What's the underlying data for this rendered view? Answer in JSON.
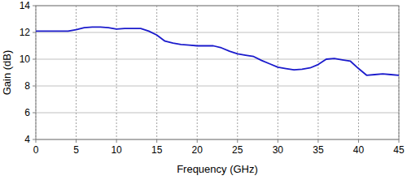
{
  "chart_data": {
    "type": "line",
    "x_label": "Frequency (GHz)",
    "y_label": "Gain (dB)",
    "x": [
      0,
      2,
      4,
      5,
      6,
      7,
      8,
      9,
      10,
      11,
      12,
      13,
      14,
      15,
      16,
      17,
      18,
      19,
      20,
      21,
      22,
      23,
      24,
      25,
      26,
      27,
      28,
      29,
      30,
      31,
      32,
      33,
      34,
      35,
      36,
      37,
      38,
      39,
      40,
      41,
      42,
      43,
      44,
      45
    ],
    "values": [
      12.1,
      12.1,
      12.1,
      12.2,
      12.35,
      12.4,
      12.4,
      12.35,
      12.25,
      12.3,
      12.3,
      12.3,
      12.1,
      11.8,
      11.35,
      11.2,
      11.1,
      11.05,
      11.0,
      11.0,
      11.0,
      10.85,
      10.6,
      10.4,
      10.3,
      10.2,
      9.9,
      9.65,
      9.4,
      9.3,
      9.2,
      9.25,
      9.35,
      9.6,
      10.0,
      10.05,
      9.95,
      9.85,
      9.3,
      8.8,
      8.85,
      8.9,
      8.85,
      8.8
    ],
    "color": "#1a1acc",
    "xlim": [
      0,
      45
    ],
    "xticks": [
      0,
      5,
      10,
      15,
      20,
      25,
      30,
      35,
      40,
      45
    ],
    "ylim": [
      4,
      14
    ],
    "yticks": [
      4,
      6,
      8,
      10,
      12,
      14
    ],
    "grid": true
  }
}
